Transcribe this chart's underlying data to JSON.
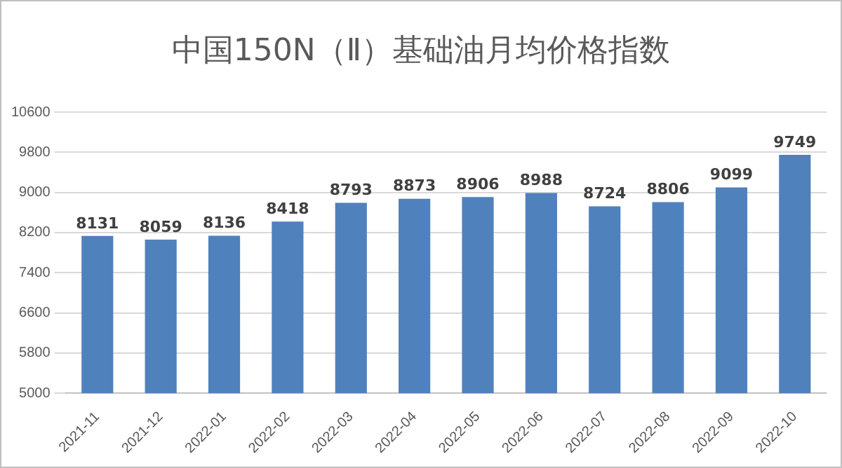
{
  "chart_data": {
    "type": "bar",
    "title": "中国150N（Ⅱ）基础油月均价格指数",
    "categories": [
      "2021-11",
      "2021-12",
      "2022-01",
      "2022-02",
      "2022-03",
      "2022-04",
      "2022-05",
      "2022-06",
      "2022-07",
      "2022-08",
      "2022-09",
      "2022-10"
    ],
    "values": [
      8131,
      8059,
      8136,
      8418,
      8793,
      8873,
      8906,
      8988,
      8724,
      8806,
      9099,
      9749
    ],
    "color": "#4f81bd",
    "ylim": [
      5000,
      10600
    ],
    "yticks": [
      5000,
      5800,
      6600,
      7400,
      8200,
      9000,
      9800,
      10600
    ],
    "grid": "y",
    "data_labels": true,
    "legend": false
  }
}
